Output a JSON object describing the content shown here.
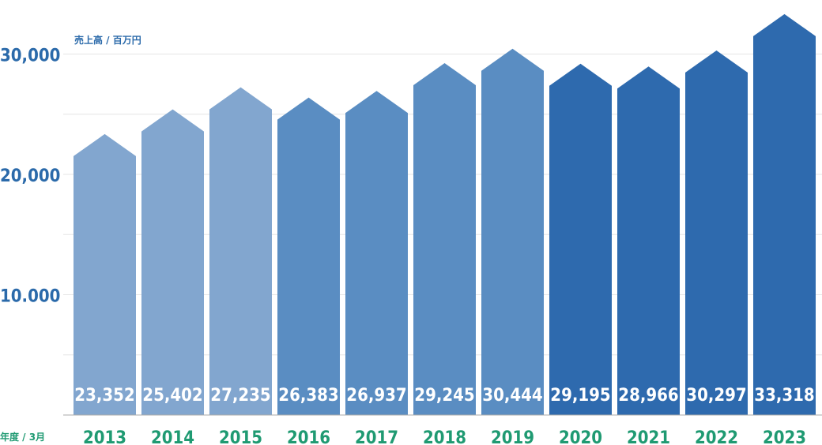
{
  "chart_data": {
    "type": "bar",
    "ylabel": "売上高 / 百万円",
    "xlabel": "年度 / 3月",
    "categories": [
      "2013",
      "2014",
      "2015",
      "2016",
      "2017",
      "2018",
      "2019",
      "2020",
      "2021",
      "2022",
      "2023"
    ],
    "values": [
      23352,
      25402,
      27235,
      26383,
      26937,
      29245,
      30444,
      29195,
      28966,
      30297,
      33318
    ],
    "value_labels": [
      "23,352",
      "25,402",
      "27,235",
      "26,383",
      "26,937",
      "29,245",
      "30,444",
      "29,195",
      "28,966",
      "30,297",
      "33,318"
    ],
    "ytick_labels": [
      "10.000",
      "20,000",
      "30,000"
    ],
    "yticks": [
      10000,
      20000,
      30000
    ],
    "ylim": [
      0,
      30000
    ],
    "grid": true,
    "colors": [
      "#82a6cf",
      "#82a6cf",
      "#82a6cf",
      "#5a8dc2",
      "#5a8dc2",
      "#5a8dc2",
      "#5a8dc2",
      "#2e6aae",
      "#2e6aae",
      "#2e6aae",
      "#2e6aae"
    ]
  }
}
